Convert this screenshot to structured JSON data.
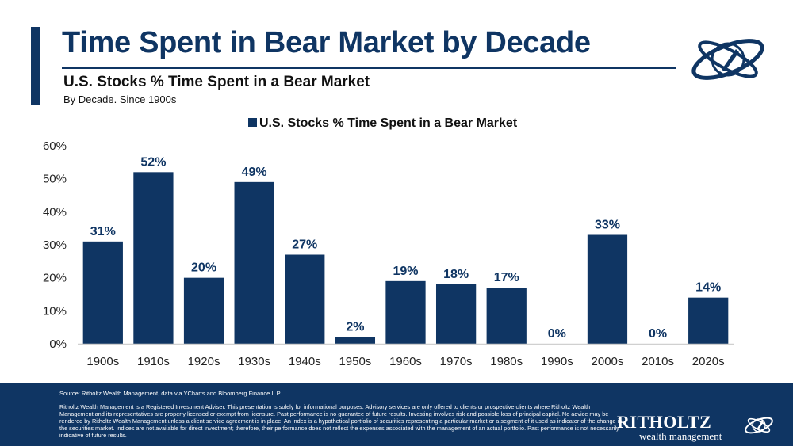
{
  "header": {
    "title": "Time Spent in Bear Market by Decade",
    "subtitle": "U.S. Stocks % Time Spent in a Bear Market",
    "note": "By Decade. Since 1900s"
  },
  "logo": {
    "icon": "rocket-orbit-icon"
  },
  "chart_data": {
    "type": "bar",
    "legend": "U.S. Stocks % Time Spent in a Bear Market",
    "legend_position": "top-center",
    "categories": [
      "1900s",
      "1910s",
      "1920s",
      "1930s",
      "1940s",
      "1950s",
      "1960s",
      "1970s",
      "1980s",
      "1990s",
      "2000s",
      "2010s",
      "2020s"
    ],
    "series": [
      {
        "name": "U.S. Stocks % Time Spent in a Bear Market",
        "values": [
          31,
          52,
          20,
          49,
          27,
          2,
          19,
          18,
          17,
          0,
          33,
          0,
          14
        ]
      }
    ],
    "data_labels": [
      "31%",
      "52%",
      "20%",
      "49%",
      "27%",
      "2%",
      "19%",
      "18%",
      "17%",
      "0%",
      "33%",
      "0%",
      "14%"
    ],
    "y_ticks": [
      "0%",
      "10%",
      "20%",
      "30%",
      "40%",
      "50%",
      "60%"
    ],
    "ylim": [
      0,
      60
    ],
    "grid": false,
    "bar_color": "#0f3563"
  },
  "footer": {
    "source": "Source: Ritholtz Wealth Management, data via YCharts and Bloomberg Finance L.P.",
    "disclaimer": "Ritholtz Wealth Management is a Registered Investment Adviser. This presentation is solely for informational purposes. Advisory services are only offered to clients or prospective clients where Ritholtz Wealth Management and its representatives are properly licensed or exempt from licensure. Past performance is no guarantee of future results. Investing involves risk and possible loss of principal capital. No advice may be rendered by Ritholtz Wealth Management unless a client service agreement is in place. An index is a hypothetical portfolio of securities representing a particular market or a segment of it used as indicator of the change in the securities market. Indices are not available for direct investment; therefore, their performance does not reflect the expenses associated with the management of an actual portfolio. Past performance is not necessarily indicative of future results.",
    "brand_name": "RITHOLTZ",
    "brand_sub": "wealth management",
    "brand_icon": "rocket-orbit-icon"
  },
  "colors": {
    "brand": "#0f3563",
    "text": "#111111",
    "axis": "#d0d0d0"
  }
}
